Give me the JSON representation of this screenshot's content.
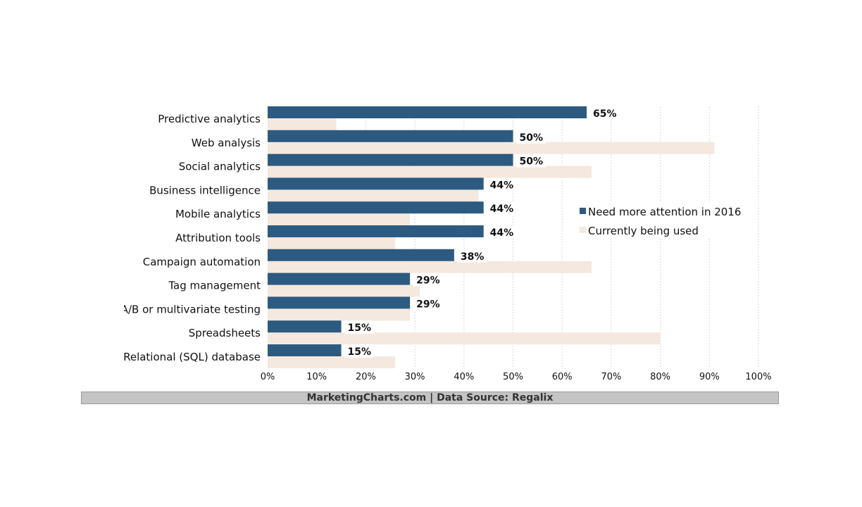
{
  "chart_data": {
    "type": "bar",
    "orientation": "horizontal",
    "categories": [
      "Predictive analytics",
      "Web analysis",
      "Social analytics",
      "Business intelligence",
      "Mobile analytics",
      "Attribution tools",
      "Campaign automation",
      "Tag management",
      "A/B or multivariate testing",
      "Spreadsheets",
      "Relational (SQL) database"
    ],
    "series": [
      {
        "name": "Need more attention in 2016",
        "values": [
          65,
          50,
          50,
          44,
          44,
          44,
          38,
          29,
          29,
          15,
          15
        ],
        "color": "#2d5a80",
        "data_labels": [
          "65%",
          "50%",
          "50%",
          "44%",
          "44%",
          "44%",
          "38%",
          "29%",
          "29%",
          "15%",
          "15%"
        ]
      },
      {
        "name": "Currently being used",
        "values": [
          14,
          91,
          66,
          43,
          29,
          26,
          66,
          31,
          29,
          80,
          26
        ],
        "color": "#f4e8df"
      }
    ],
    "xlim": [
      0,
      100
    ],
    "x_ticks": [
      "0%",
      "10%",
      "20%",
      "30%",
      "40%",
      "50%",
      "60%",
      "70%",
      "80%",
      "90%",
      "100%"
    ],
    "grid": true,
    "legend_position": "right"
  },
  "footer": {
    "text": "MarketingCharts.com | Data Source: Regalix"
  }
}
